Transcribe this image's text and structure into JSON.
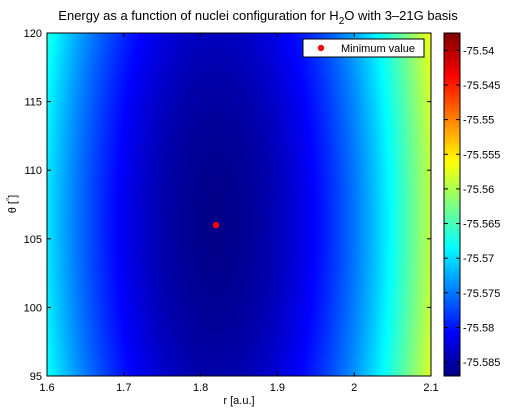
{
  "chart_data": {
    "type": "heatmap",
    "title_parts": {
      "prefix": "Energy as a function of nuclei configuration for H",
      "subscript": "2",
      "suffix": "O with 3–21G basis"
    },
    "xlabel": "r [a.u.]",
    "ylabel_parts": {
      "theta": "θ",
      "degree": "°",
      "left_bracket": "[",
      "right_bracket": "]"
    },
    "xlim": [
      1.6,
      2.1
    ],
    "ylim": [
      95,
      120
    ],
    "x_ticks": [
      1.6,
      1.7,
      1.8,
      1.9,
      2.0,
      2.1
    ],
    "x_tick_labels": [
      "1.6",
      "1.7",
      "1.8",
      "1.9",
      "2",
      "2.1"
    ],
    "y_ticks": [
      95,
      100,
      105,
      110,
      115,
      120
    ],
    "y_tick_labels": [
      "95",
      "100",
      "105",
      "110",
      "115",
      "120"
    ],
    "colorbar": {
      "clim": [
        -75.587,
        -75.5375
      ],
      "ticks": [
        -75.585,
        -75.58,
        -75.575,
        -75.57,
        -75.565,
        -75.56,
        -75.555,
        -75.55,
        -75.545,
        -75.54
      ],
      "tick_labels": [
        "-75.585",
        "-75.58",
        "-75.575",
        "-75.57",
        "-75.565",
        "-75.56",
        "-75.555",
        "-75.55",
        "-75.545",
        "-75.54"
      ],
      "colormap": "jet"
    },
    "surface_model": {
      "r_min": 1.82,
      "theta_min": 106,
      "e_min": -75.5865,
      "r_coef": 0.35,
      "theta_coef": 1.3e-05
    },
    "series": [
      {
        "name": "Minimum value",
        "type": "scatter",
        "points": [
          {
            "x": 1.82,
            "y": 106
          }
        ],
        "color": "#ff0000"
      }
    ],
    "legend": {
      "position": "top-right",
      "label": "Minimum value"
    },
    "grid": false
  }
}
